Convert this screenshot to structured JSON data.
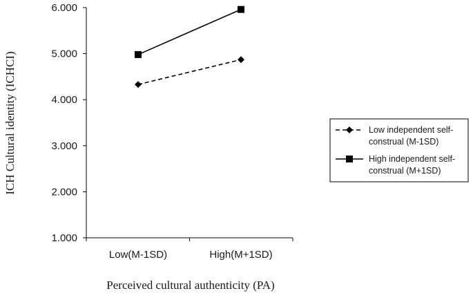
{
  "chart_data": {
    "type": "line",
    "xlabel": "Perceived cultural authenticity (PA)",
    "ylabel": "ICH Cultural identity (ICHCI)",
    "categories": [
      "Low(M-1SD)",
      "High(M+1SD)"
    ],
    "ylim": [
      1.0,
      6.0
    ],
    "yticks": [
      "1.000",
      "2.000",
      "3.000",
      "4.000",
      "5.000",
      "6.000"
    ],
    "grid": false,
    "legend_position": "right",
    "series": [
      {
        "name_lines": [
          "Low independent self-",
          "construal (M-1SD)"
        ],
        "values": [
          4.33,
          4.87
        ],
        "line_style": "dashed",
        "marker": "diamond",
        "color": "#000000"
      },
      {
        "name_lines": [
          "High independent self-",
          "construal (M+1SD)"
        ],
        "values": [
          4.98,
          5.96
        ],
        "line_style": "solid",
        "marker": "square",
        "color": "#000000"
      }
    ]
  }
}
